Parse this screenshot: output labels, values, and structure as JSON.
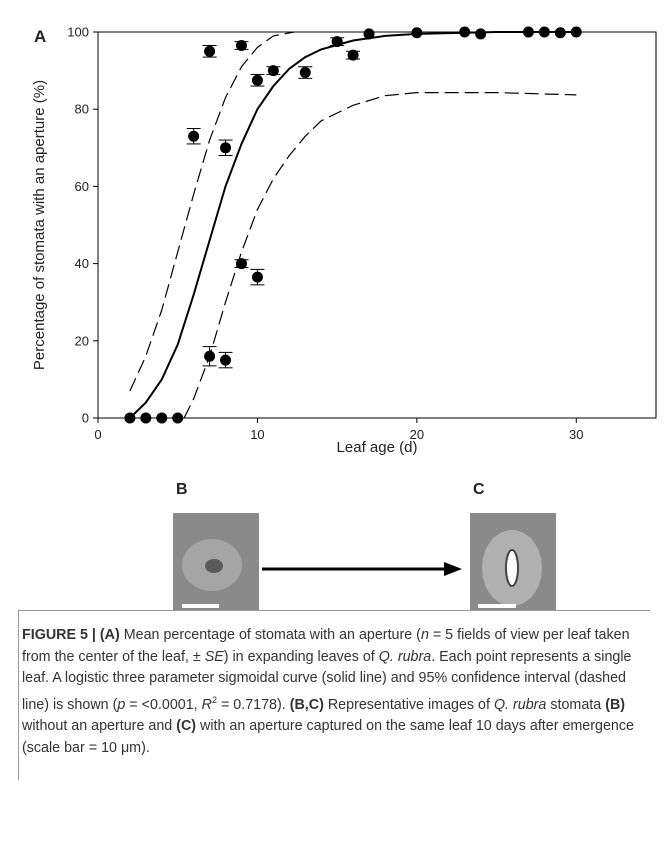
{
  "panel_label": "A",
  "chart_data": {
    "type": "scatter",
    "y_label": "Percentage of stomata with an aperture (%)",
    "x_label": "Leaf age (d)",
    "xlim": [
      0,
      35
    ],
    "xticks": [
      0,
      10,
      20,
      30
    ],
    "ylim": [
      0,
      100
    ],
    "yticks": [
      0,
      20,
      40,
      60,
      80,
      100
    ],
    "color": "#000000",
    "x": [
      2,
      3,
      4,
      5,
      6,
      7,
      7,
      8,
      8,
      9,
      9,
      10,
      10,
      11,
      13,
      15,
      16,
      17,
      20,
      23,
      24,
      27,
      28,
      29,
      30
    ],
    "values": [
      0,
      0,
      0,
      0,
      73,
      95,
      16,
      70,
      15,
      96.5,
      40,
      87.5,
      36.5,
      90,
      89.5,
      97.5,
      94,
      99.5,
      99.8,
      100,
      99.5,
      100,
      100,
      99.8,
      100
    ],
    "errors": [
      null,
      null,
      null,
      null,
      2,
      1.5,
      2.5,
      2,
      2,
      1,
      1,
      1.5,
      2,
      1,
      1.5,
      1,
      1,
      null,
      null,
      null,
      null,
      null,
      null,
      null,
      null
    ],
    "fit": {
      "x": [
        2,
        3,
        4,
        5,
        6,
        7,
        8,
        9,
        10,
        11,
        12,
        13,
        14,
        16,
        18,
        20,
        25,
        30
      ],
      "values": [
        0,
        4,
        10,
        19,
        32,
        46,
        60,
        71,
        80,
        86,
        90.5,
        93.5,
        95.5,
        97.8,
        99,
        99.5,
        100,
        100
      ]
    },
    "ci_upper": {
      "x": [
        2,
        3,
        4,
        5,
        6,
        7,
        8,
        9,
        10,
        11,
        12.3
      ],
      "values": [
        7,
        16,
        28,
        43,
        58,
        72,
        83,
        91,
        96,
        99,
        100
      ]
    },
    "ci_lower": {
      "x": [
        5.4,
        6,
        7,
        8,
        9,
        10,
        11,
        12,
        13,
        14,
        16,
        18,
        20,
        25,
        30
      ],
      "values": [
        0,
        5,
        16,
        30,
        43,
        54,
        62,
        68,
        73,
        77,
        81,
        83.5,
        84.3,
        84.3,
        83.7
      ]
    }
  },
  "image_labels": [
    "B",
    "C"
  ],
  "caption": [
    "FIGURE 5 | (A)",
    " Mean percentage of stomata with an aperture (",
    "n",
    " = 5 fields of view per leaf taken from the center of the leaf, ± ",
    "SE",
    ") in expanding leaves of ",
    "Q. rubra",
    ". Each point represents a single leaf. A logistic three parameter sigmoidal curve (solid line) and 95% confidence interval (dashed line) is shown (",
    "p",
    " = <0.0001, ",
    "R",
    "2",
    " = 0.7178). ",
    "(B,C)",
    " Representative images of ",
    "Q. rubra",
    " stomata ",
    "(B)",
    " without an aperture and ",
    "(C)",
    " with an aperture captured on the same leaf 10 days after emergence (scale bar = 10 μm)."
  ]
}
